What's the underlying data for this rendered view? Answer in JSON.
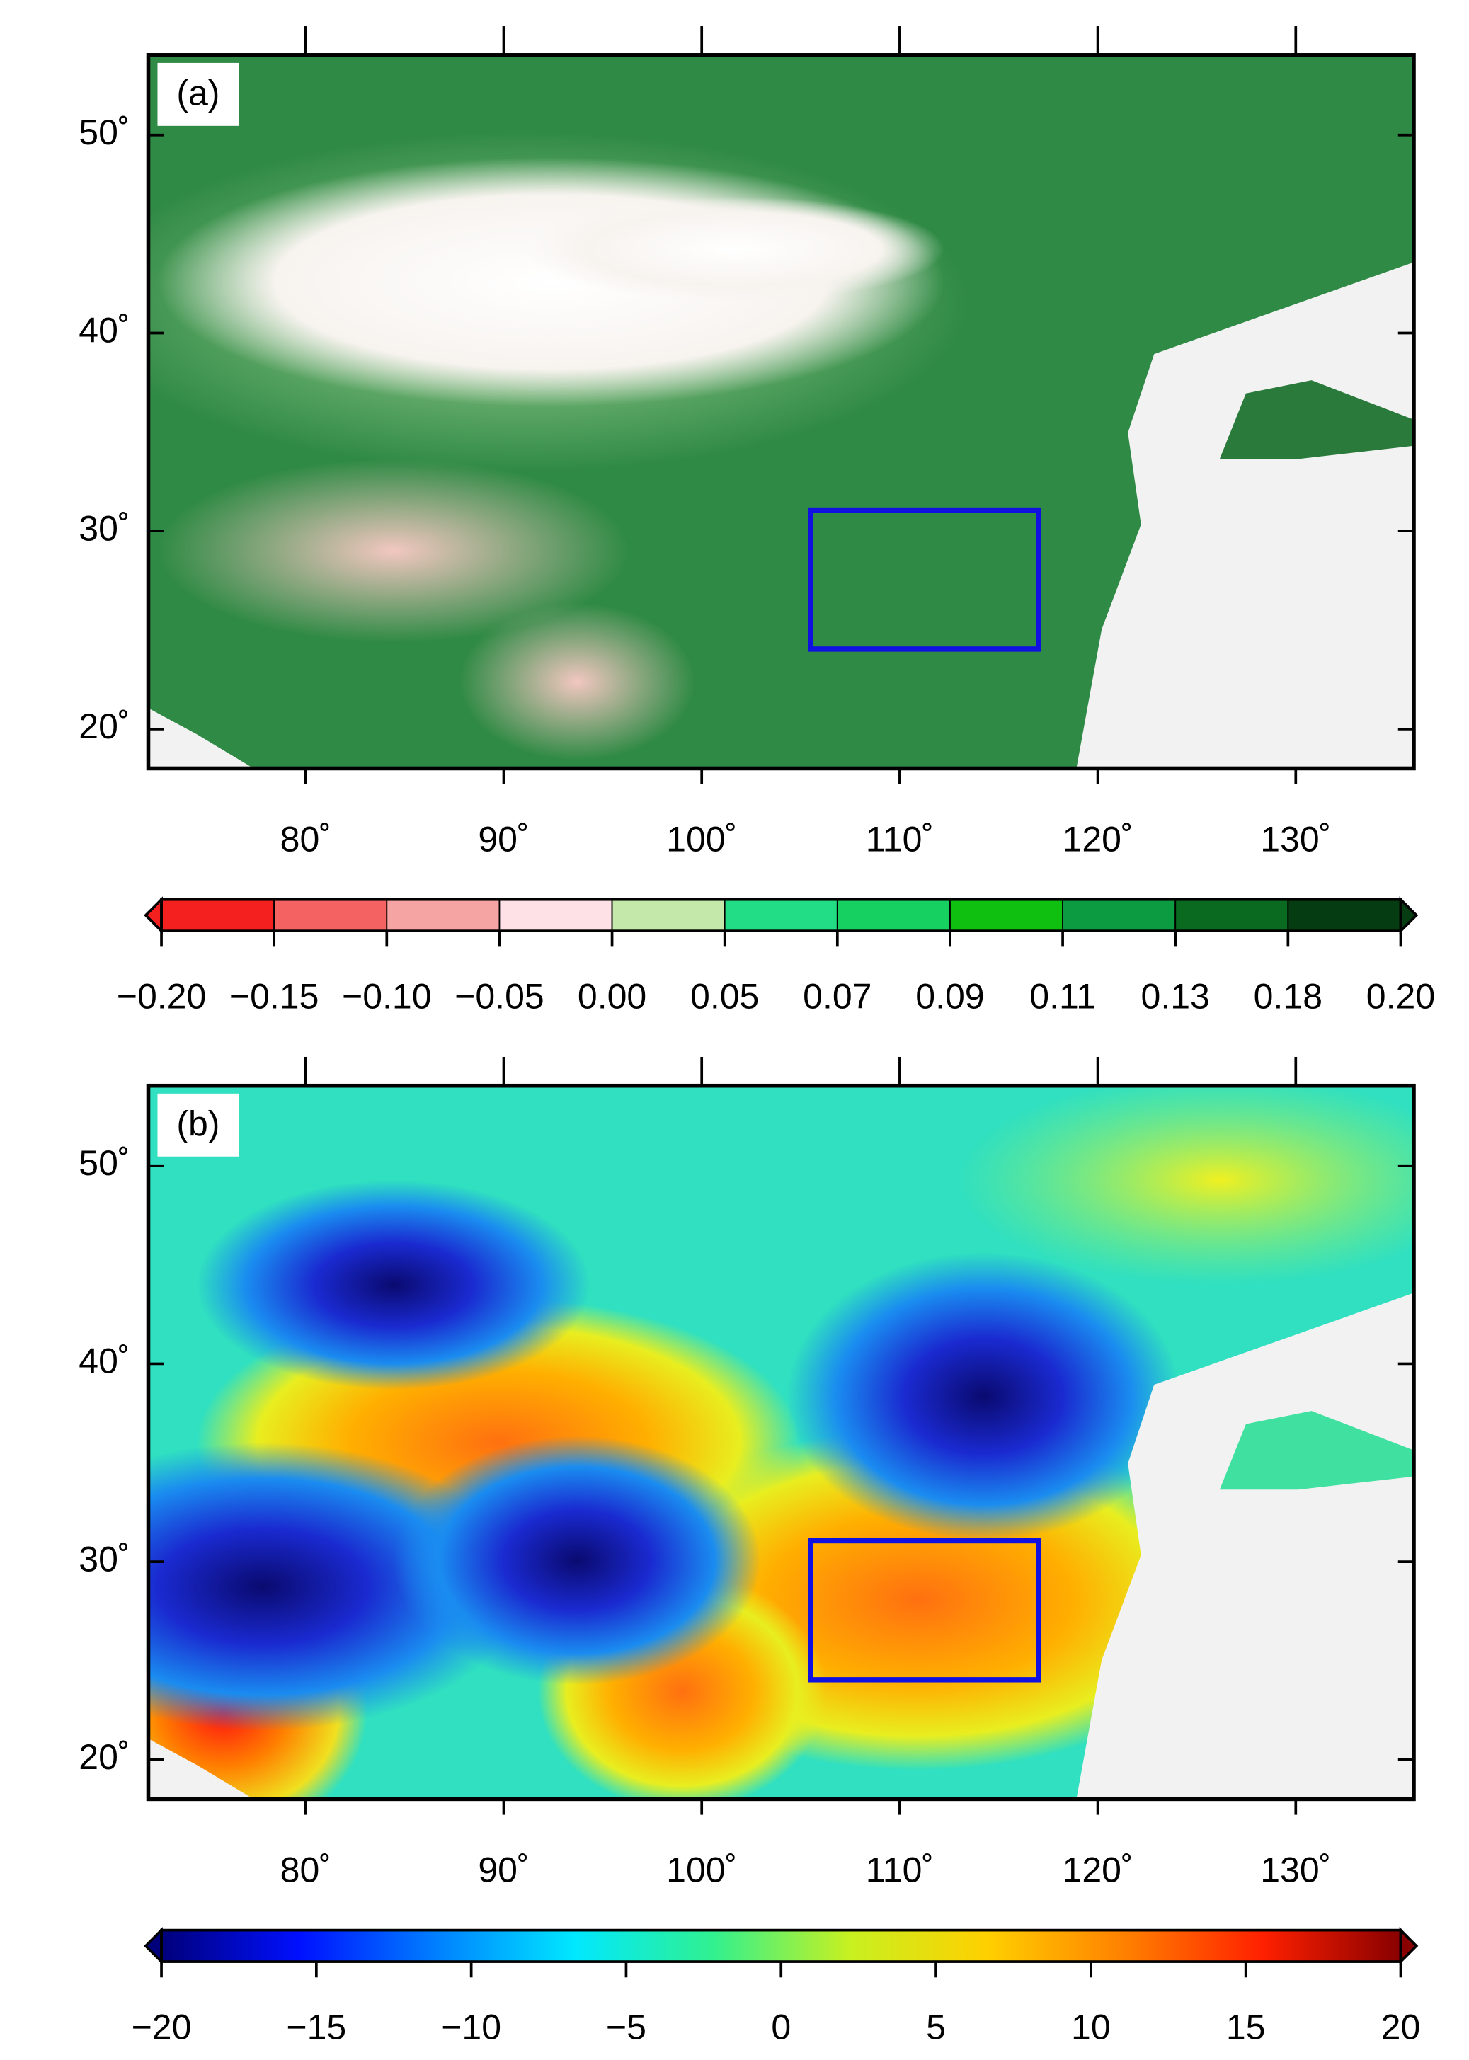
{
  "panels": [
    {
      "label": "(a)",
      "lat_labels": [
        "50˚",
        "40˚",
        "30˚",
        "20˚"
      ],
      "lon_labels": [
        "80˚",
        "90˚",
        "100˚",
        "110˚",
        "120˚",
        "130˚"
      ],
      "box_color": "#1010e0",
      "colorbar": {
        "kind": "discrete",
        "labels": [
          "−0.20",
          "−0.15",
          "−0.10",
          "−0.05",
          "0.00",
          "0.05",
          "0.07",
          "0.09",
          "0.11",
          "0.13",
          "0.18",
          "0.20"
        ],
        "colors": [
          "#f42020",
          "#f46262",
          "#f5a3a3",
          "#fde1e6",
          "#c3e8a9",
          "#22dc86",
          "#16d162",
          "#0fc010",
          "#0d9b42",
          "#0a6a1f",
          "#063c12"
        ]
      }
    },
    {
      "label": "(b)",
      "lat_labels": [
        "50˚",
        "40˚",
        "30˚",
        "20˚"
      ],
      "lon_labels": [
        "80˚",
        "90˚",
        "100˚",
        "110˚",
        "120˚",
        "130˚"
      ],
      "box_color": "#1010e0",
      "colorbar": {
        "kind": "continuous",
        "labels": [
          "−20",
          "−15",
          "−10",
          "−5",
          "0",
          "5",
          "10",
          "15",
          "20"
        ],
        "colors": [
          "#00007a",
          "#0010ff",
          "#0080ff",
          "#00e8ff",
          "#30f090",
          "#c8f020",
          "#ffd000",
          "#ff8000",
          "#ff2000",
          "#880000"
        ]
      }
    }
  ]
}
